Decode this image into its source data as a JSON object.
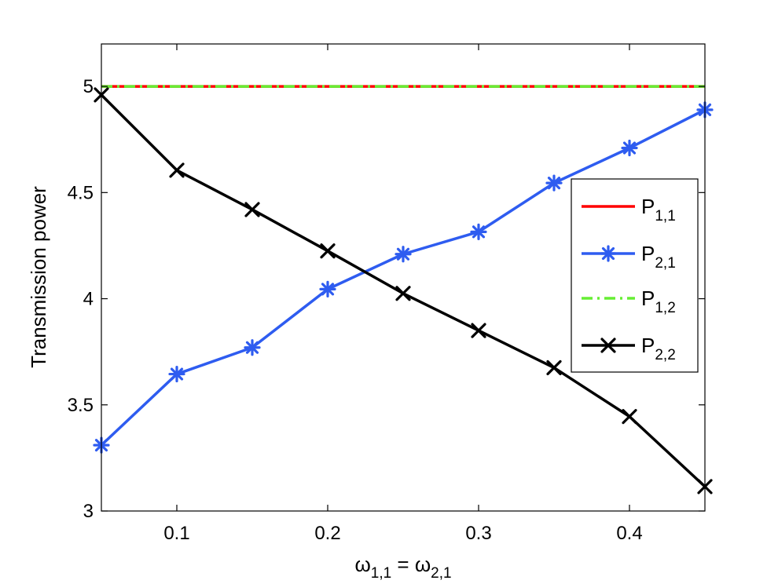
{
  "chart_data": {
    "type": "line",
    "xlabel": {
      "main": "ω",
      "sub1": "1,1",
      "mid": " = ω",
      "sub2": "2,1"
    },
    "ylabel": "Transmission power",
    "xlim": [
      0.05,
      0.45
    ],
    "ylim": [
      3,
      5.2
    ],
    "x_ticks": [
      0.1,
      0.2,
      0.3,
      0.4
    ],
    "x_tick_labels": [
      "0.1",
      "0.2",
      "0.3",
      "0.4"
    ],
    "y_ticks": [
      3,
      3.5,
      4,
      4.5,
      5
    ],
    "y_tick_labels": [
      "3",
      "3.5",
      "4",
      "4.5",
      "5"
    ],
    "grid": false,
    "legend_position": "right",
    "x": [
      0.05,
      0.1,
      0.15,
      0.2,
      0.25,
      0.3,
      0.35,
      0.4,
      0.45
    ],
    "series": [
      {
        "name": "P",
        "sub": "1,1",
        "color": "#ff0000",
        "line": "solid",
        "marker": "none",
        "values": [
          5,
          5,
          5,
          5,
          5,
          5,
          5,
          5,
          5
        ]
      },
      {
        "name": "P",
        "sub": "2,1",
        "color": "#2e5cf0",
        "line": "solid",
        "marker": "asterisk",
        "values": [
          3.31,
          3.645,
          3.77,
          4.045,
          4.21,
          4.315,
          4.545,
          4.71,
          4.89
        ]
      },
      {
        "name": "P",
        "sub": "1,2",
        "color": "#66ee33",
        "line": "dashdot",
        "marker": "none",
        "values": [
          5,
          5,
          5,
          5,
          5,
          5,
          5,
          5,
          5
        ]
      },
      {
        "name": "P",
        "sub": "2,2",
        "color": "#000000",
        "line": "solid",
        "marker": "x",
        "values": [
          4.96,
          4.605,
          4.42,
          4.225,
          4.025,
          3.85,
          3.675,
          3.445,
          3.115
        ]
      }
    ]
  }
}
